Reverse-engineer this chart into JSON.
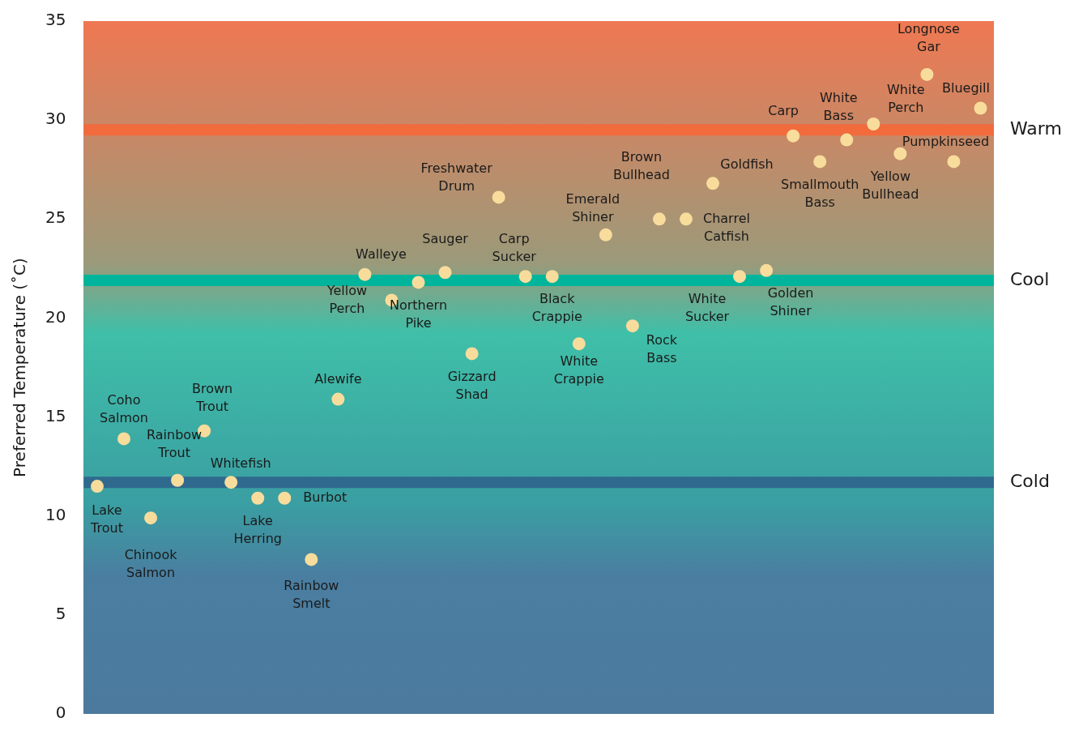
{
  "chart_data": {
    "type": "scatter",
    "ylabel": "Preferred Temperature (˚C)",
    "categories": [
      null,
      null,
      null,
      null,
      null,
      null,
      null,
      null,
      null,
      null,
      null,
      null,
      null,
      null,
      null,
      null,
      null,
      null,
      null,
      null,
      null,
      null,
      null,
      null,
      null,
      null,
      null,
      null,
      null,
      null,
      null,
      null,
      null,
      null
    ],
    "series": [
      {
        "color": "#f8dc9c",
        "values": [
          11.5,
          13.9,
          9.9,
          11.8,
          14.3,
          11.7,
          10.9,
          10.9,
          7.8,
          15.9,
          22.2,
          20.9,
          21.8,
          22.3,
          18.2,
          26.1,
          22.1,
          22.1,
          18.7,
          24.2,
          19.6,
          25.0,
          25.0,
          26.8,
          22.1,
          22.4,
          29.2,
          27.9,
          29.0,
          29.8,
          28.3,
          32.3,
          27.9,
          30.6
        ],
        "value_labels": [
          "Lake Trout",
          "Coho Salmon",
          "Chinook Salmon",
          "Rainbow Trout",
          "Brown Trout",
          "Whitefish",
          "Lake Herring",
          "Burbot",
          "Rainbow Smelt",
          "Alewife",
          "Walleye",
          "Yellow Perch",
          "Northern Pike",
          "Sauger",
          "Gizzard Shad",
          "Freshwater Drum",
          "Carp Sucker",
          "Black Crappie",
          "White Crappie",
          "Emerald Shiner",
          "Rock Bass",
          "Brown Bullhead",
          "Charrel Catfish",
          "Goldfish",
          "White Sucker",
          "Golden Shiner",
          "Carp",
          "Smallmouth Bass",
          "White Bass",
          "White Perch",
          "Yellow Bullhead",
          "Longnose Gar",
          "Pumpkinseed",
          "Bluegill"
        ]
      }
    ],
    "ylim": [
      0,
      35
    ],
    "yticks": [
      0,
      5,
      10,
      15,
      20,
      25,
      30,
      35
    ],
    "ref_lines": [
      {
        "axis": "y",
        "value": 29.5,
        "label": "Warm",
        "color": "#f26b3c"
      },
      {
        "axis": "y",
        "value": 21.9,
        "label": "Cool",
        "color": "#00b59c"
      },
      {
        "axis": "y",
        "value": 11.7,
        "label": "Cold",
        "color": "#2f6a8e"
      }
    ],
    "tick_labels": "y",
    "grid": false,
    "legend": false,
    "marker": "circle"
  }
}
